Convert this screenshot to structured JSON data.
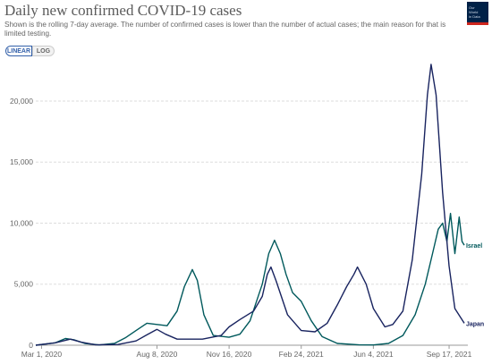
{
  "title": "Daily new confirmed COVID-19 cases",
  "subtitle": "Shown is the rolling 7-day average. The number of confirmed cases is lower than the number of actual cases; the main reason for that is limited testing.",
  "logo_text": "Our World in Data",
  "toggle": {
    "linear_label": "LINEAR",
    "log_label": "LOG",
    "selected": "LINEAR"
  },
  "chart_data": {
    "type": "line",
    "xlabel": "",
    "ylabel": "",
    "ylim": [
      0,
      23000
    ],
    "y_ticks": [
      0,
      5000,
      10000,
      15000,
      20000
    ],
    "y_tick_labels": [
      "0",
      "5,000",
      "10,000",
      "15,000",
      "20,000"
    ],
    "x_range": [
      "2020-02-22",
      "2021-10-13"
    ],
    "x_ticks": [
      "2020-03-01",
      "2020-08-08",
      "2020-11-16",
      "2021-02-24",
      "2021-06-04",
      "2021-09-17"
    ],
    "x_tick_labels": [
      "Mar 1, 2020",
      "Aug 8, 2020",
      "Nov 16, 2020",
      "Feb 24, 2021",
      "Jun 4, 2021",
      "Sep 17, 2021"
    ],
    "grid": "horizontal",
    "series": [
      {
        "name": "Israel",
        "color": "#00595c",
        "points": [
          [
            "2020-02-22",
            0
          ],
          [
            "2020-03-20",
            200
          ],
          [
            "2020-04-03",
            550
          ],
          [
            "2020-04-15",
            450
          ],
          [
            "2020-04-30",
            150
          ],
          [
            "2020-05-20",
            20
          ],
          [
            "2020-06-10",
            150
          ],
          [
            "2020-06-25",
            600
          ],
          [
            "2020-07-10",
            1200
          ],
          [
            "2020-07-25",
            1800
          ],
          [
            "2020-08-08",
            1700
          ],
          [
            "2020-08-22",
            1600
          ],
          [
            "2020-09-05",
            2800
          ],
          [
            "2020-09-15",
            4800
          ],
          [
            "2020-09-26",
            6200
          ],
          [
            "2020-10-03",
            5300
          ],
          [
            "2020-10-12",
            2500
          ],
          [
            "2020-10-25",
            800
          ],
          [
            "2020-11-16",
            650
          ],
          [
            "2020-12-01",
            900
          ],
          [
            "2020-12-15",
            2000
          ],
          [
            "2021-01-01",
            5000
          ],
          [
            "2021-01-10",
            7500
          ],
          [
            "2021-01-18",
            8600
          ],
          [
            "2021-01-26",
            7500
          ],
          [
            "2021-02-03",
            5800
          ],
          [
            "2021-02-12",
            4300
          ],
          [
            "2021-02-24",
            3600
          ],
          [
            "2021-03-10",
            2000
          ],
          [
            "2021-03-25",
            700
          ],
          [
            "2021-04-15",
            150
          ],
          [
            "2021-05-15",
            30
          ],
          [
            "2021-06-04",
            20
          ],
          [
            "2021-06-25",
            150
          ],
          [
            "2021-07-15",
            800
          ],
          [
            "2021-08-01",
            2500
          ],
          [
            "2021-08-15",
            5000
          ],
          [
            "2021-08-25",
            7500
          ],
          [
            "2021-09-02",
            9500
          ],
          [
            "2021-09-08",
            10000
          ],
          [
            "2021-09-14",
            8500
          ],
          [
            "2021-09-19",
            10800
          ],
          [
            "2021-09-25",
            7500
          ],
          [
            "2021-10-01",
            10500
          ],
          [
            "2021-10-05",
            8500
          ],
          [
            "2021-10-08",
            8200
          ]
        ]
      },
      {
        "name": "Japan",
        "color": "#18235f",
        "points": [
          [
            "2020-02-22",
            0
          ],
          [
            "2020-03-20",
            200
          ],
          [
            "2020-04-10",
            500
          ],
          [
            "2020-04-25",
            250
          ],
          [
            "2020-05-15",
            30
          ],
          [
            "2020-06-15",
            60
          ],
          [
            "2020-07-10",
            350
          ],
          [
            "2020-07-25",
            850
          ],
          [
            "2020-08-08",
            1300
          ],
          [
            "2020-08-20",
            900
          ],
          [
            "2020-09-05",
            500
          ],
          [
            "2020-10-10",
            500
          ],
          [
            "2020-11-05",
            800
          ],
          [
            "2020-11-16",
            1500
          ],
          [
            "2020-12-01",
            2100
          ],
          [
            "2020-12-20",
            2800
          ],
          [
            "2021-01-01",
            4000
          ],
          [
            "2021-01-08",
            5800
          ],
          [
            "2021-01-13",
            6400
          ],
          [
            "2021-01-20",
            5300
          ],
          [
            "2021-02-05",
            2500
          ],
          [
            "2021-02-24",
            1200
          ],
          [
            "2021-03-15",
            1100
          ],
          [
            "2021-04-01",
            1800
          ],
          [
            "2021-04-15",
            3300
          ],
          [
            "2021-04-28",
            4800
          ],
          [
            "2021-05-08",
            5800
          ],
          [
            "2021-05-13",
            6400
          ],
          [
            "2021-05-25",
            5000
          ],
          [
            "2021-06-04",
            3000
          ],
          [
            "2021-06-20",
            1500
          ],
          [
            "2021-07-01",
            1700
          ],
          [
            "2021-07-15",
            2800
          ],
          [
            "2021-07-28",
            7000
          ],
          [
            "2021-08-10",
            14000
          ],
          [
            "2021-08-18",
            20500
          ],
          [
            "2021-08-23",
            23000
          ],
          [
            "2021-08-30",
            20500
          ],
          [
            "2021-09-08",
            12500
          ],
          [
            "2021-09-17",
            6500
          ],
          [
            "2021-09-25",
            3000
          ],
          [
            "2021-10-08",
            1800
          ]
        ]
      }
    ]
  }
}
